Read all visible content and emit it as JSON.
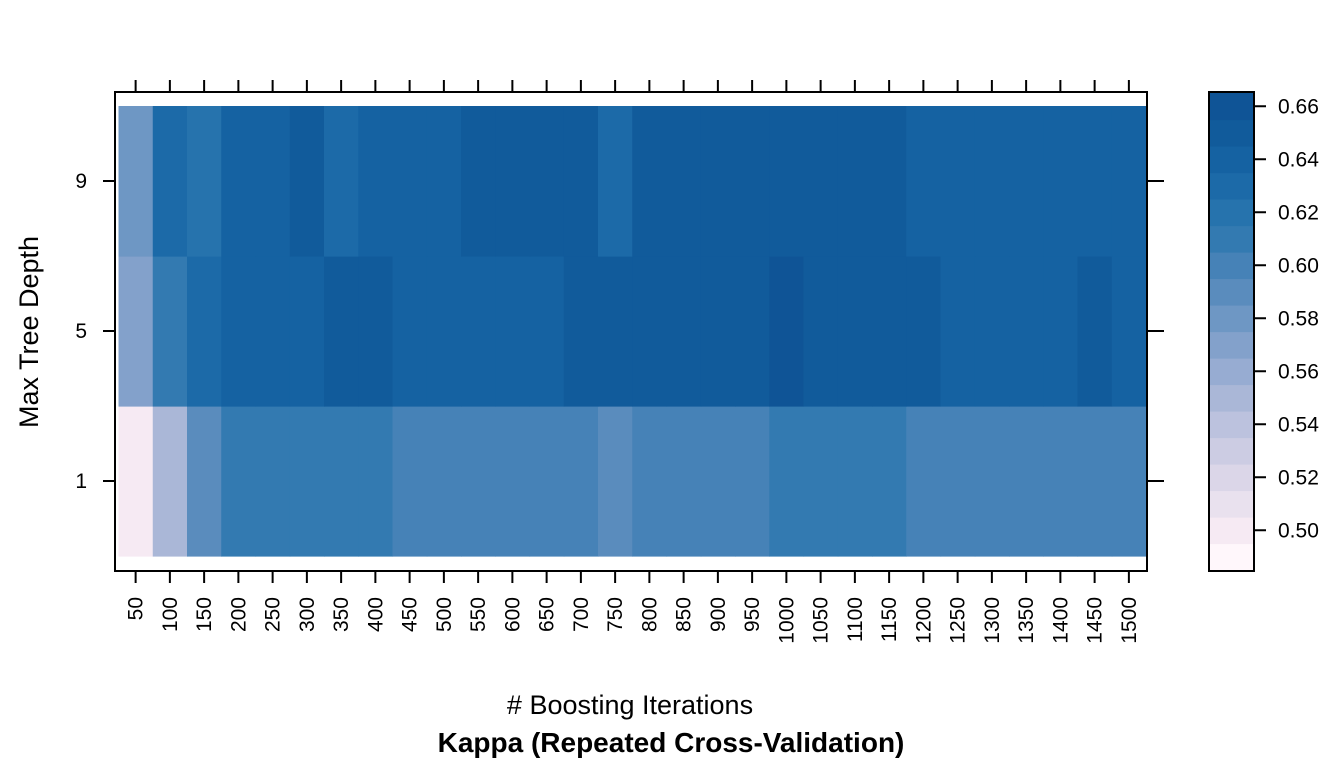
{
  "chart_data": {
    "type": "heatmap",
    "title": "Kappa (Repeated Cross-Validation)",
    "xlabel": "# Boosting Iterations",
    "ylabel": "Max Tree Depth",
    "x_categories": [
      "50",
      "100",
      "150",
      "200",
      "250",
      "300",
      "350",
      "400",
      "450",
      "500",
      "550",
      "600",
      "650",
      "700",
      "750",
      "800",
      "850",
      "900",
      "950",
      "1000",
      "1050",
      "1100",
      "1150",
      "1200",
      "1250",
      "1300",
      "1350",
      "1400",
      "1450",
      "1500"
    ],
    "y_categories": [
      "1",
      "5",
      "9"
    ],
    "series": [
      {
        "name": "1",
        "values": [
          0.495,
          0.55,
          0.585,
          0.605,
          0.605,
          0.605,
          0.605,
          0.605,
          0.6,
          0.595,
          0.595,
          0.595,
          0.595,
          0.595,
          0.585,
          0.595,
          0.595,
          0.595,
          0.595,
          0.605,
          0.605,
          0.605,
          0.605,
          0.595,
          0.595,
          0.595,
          0.595,
          0.595,
          0.595,
          0.595
        ]
      },
      {
        "name": "5",
        "values": [
          0.565,
          0.605,
          0.625,
          0.635,
          0.635,
          0.635,
          0.645,
          0.645,
          0.635,
          0.635,
          0.635,
          0.635,
          0.635,
          0.645,
          0.645,
          0.645,
          0.645,
          0.645,
          0.645,
          0.655,
          0.645,
          0.645,
          0.645,
          0.645,
          0.635,
          0.635,
          0.635,
          0.635,
          0.645,
          0.635
        ]
      },
      {
        "name": "9",
        "values": [
          0.575,
          0.625,
          0.615,
          0.635,
          0.635,
          0.645,
          0.625,
          0.635,
          0.635,
          0.635,
          0.645,
          0.645,
          0.645,
          0.645,
          0.625,
          0.645,
          0.645,
          0.645,
          0.645,
          0.645,
          0.645,
          0.645,
          0.645,
          0.635,
          0.635,
          0.635,
          0.635,
          0.635,
          0.635,
          0.635
        ]
      }
    ],
    "colorbar": {
      "min": 0.485,
      "max": 0.665,
      "step": 0.01,
      "ticks": [
        "0.50",
        "0.52",
        "0.54",
        "0.56",
        "0.58",
        "0.60",
        "0.62",
        "0.64",
        "0.66"
      ],
      "colors": [
        "#FFF7FB",
        "#F6EAF3",
        "#E9E1EE",
        "#DBD6E8",
        "#CCCCE3",
        "#BCC2DE",
        "#AAB7D7",
        "#97ACD2",
        "#83A1CB",
        "#6E97C4",
        "#5A8CBD",
        "#4682B7",
        "#337AB1",
        "#2673AD",
        "#1C6AA8",
        "#1562A2",
        "#115B9B",
        "#0F5496"
      ]
    },
    "grid": false,
    "legend_position": "right"
  }
}
